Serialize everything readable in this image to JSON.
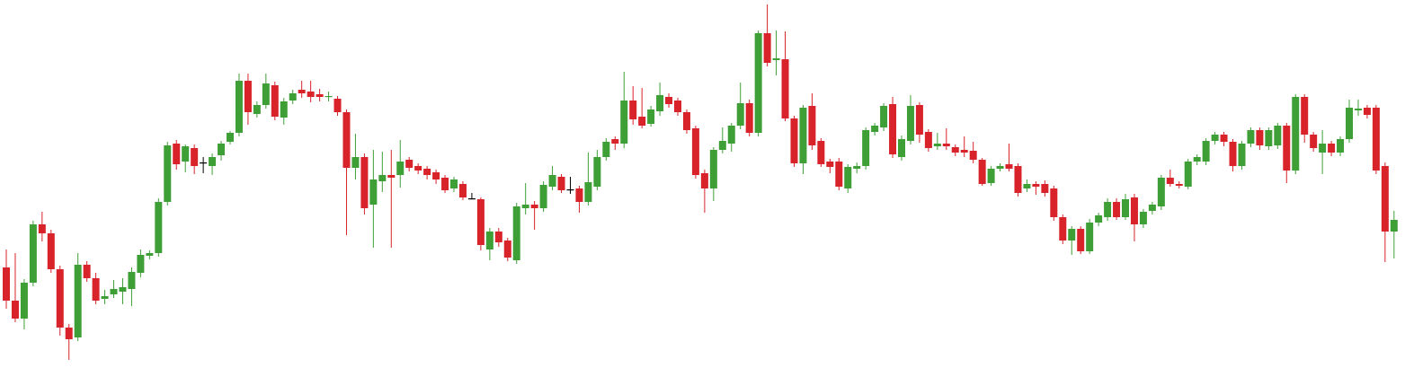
{
  "chart_data": {
    "type": "candlestick",
    "up_color": "#3f9f37",
    "down_color": "#d8232a",
    "flat_color": "#000000",
    "ylim": [
      0,
      429
    ],
    "open": [
      131,
      94,
      74,
      114,
      179,
      169,
      129,
      64,
      53,
      134,
      119,
      96,
      101,
      104,
      107,
      125,
      144,
      147,
      204,
      269,
      249,
      264,
      248,
      244,
      256,
      271,
      281,
      339,
      302,
      312,
      334,
      298,
      317,
      329,
      327,
      324,
      321,
      319,
      304,
      242,
      254,
      201,
      227,
      234,
      234,
      251,
      244,
      241,
      237,
      231,
      219,
      224,
      208,
      207,
      151,
      171,
      161,
      139,
      197,
      201,
      197,
      221,
      232,
      218,
      219,
      204,
      221,
      254,
      274,
      269,
      317,
      299,
      291,
      305,
      321,
      317,
      304,
      286,
      236,
      219,
      262,
      269,
      289,
      314,
      281,
      392,
      362,
      363,
      297,
      247,
      311,
      272,
      249,
      249,
      219,
      241,
      244,
      282,
      287,
      313,
      254,
      272,
      312,
      282,
      266,
      269,
      265,
      262,
      261,
      251,
      225,
      241,
      246,
      244,
      219,
      224,
      224,
      219,
      187,
      161,
      174,
      149,
      181,
      187,
      204,
      187,
      209,
      179,
      194,
      199,
      231,
      224,
      221,
      249,
      249,
      272,
      279,
      271,
      244,
      269,
      284,
      266,
      267,
      289,
      239,
      321,
      279,
      259,
      269,
      259,
      274,
      306,
      309,
      309,
      244,
      171
    ],
    "high": [
      151,
      147,
      118,
      183,
      193,
      173,
      133,
      68,
      147,
      138,
      125,
      106,
      117,
      119,
      131,
      151,
      150,
      208,
      271,
      273,
      268,
      268,
      254,
      258,
      272,
      283,
      347,
      347,
      316,
      347,
      338,
      320,
      329,
      339,
      339,
      330,
      327,
      322,
      307,
      280,
      258,
      262,
      260,
      262,
      273,
      254,
      247,
      244,
      240,
      234,
      232,
      227,
      214,
      209,
      175,
      175,
      164,
      203,
      225,
      205,
      227,
      244,
      235,
      232,
      222,
      259,
      262,
      275,
      277,
      349,
      333,
      331,
      311,
      337,
      325,
      320,
      307,
      289,
      240,
      265,
      287,
      292,
      337,
      318,
      395,
      424,
      395,
      394,
      300,
      312,
      325,
      275,
      252,
      253,
      246,
      248,
      287,
      292,
      314,
      321,
      278,
      323,
      315,
      285,
      281,
      286,
      268,
      277,
      271,
      253,
      244,
      247,
      269,
      247,
      229,
      227,
      228,
      222,
      190,
      177,
      177,
      185,
      192,
      208,
      208,
      213,
      213,
      196,
      204,
      234,
      240,
      227,
      252,
      257,
      275,
      282,
      282,
      274,
      272,
      287,
      287,
      287,
      292,
      292,
      324,
      324,
      282,
      284,
      272,
      277,
      318,
      318,
      312,
      312,
      248,
      194
    ],
    "low": [
      85,
      70,
      62,
      110,
      160,
      125,
      55,
      28,
      49,
      115,
      90,
      90,
      97,
      90,
      88,
      120,
      140,
      143,
      200,
      240,
      237,
      235,
      236,
      234,
      250,
      268,
      277,
      290,
      298,
      308,
      295,
      290,
      313,
      320,
      315,
      316,
      316,
      300,
      167,
      229,
      190,
      153,
      215,
      153,
      220,
      238,
      235,
      229,
      224,
      214,
      215,
      206,
      207,
      150,
      139,
      154,
      138,
      135,
      190,
      173,
      193,
      217,
      214,
      213,
      192,
      200,
      217,
      250,
      262,
      264,
      290,
      286,
      288,
      300,
      309,
      300,
      280,
      230,
      192,
      205,
      258,
      260,
      285,
      277,
      277,
      355,
      345,
      294,
      243,
      235,
      262,
      243,
      236,
      217,
      214,
      236,
      240,
      278,
      283,
      253,
      250,
      268,
      270,
      260,
      262,
      262,
      255,
      254,
      247,
      222,
      222,
      238,
      238,
      210,
      215,
      212,
      210,
      183,
      157,
      145,
      146,
      146,
      177,
      183,
      184,
      184,
      160,
      175,
      190,
      195,
      221,
      219,
      218,
      245,
      245,
      268,
      266,
      238,
      240,
      265,
      262,
      262,
      263,
      225,
      235,
      270,
      260,
      235,
      255,
      255,
      270,
      300,
      297,
      235,
      137,
      141
    ],
    "close": [
      94,
      74,
      114,
      179,
      169,
      129,
      64,
      51,
      134,
      119,
      94,
      99,
      107,
      109,
      126,
      145,
      147,
      204,
      267,
      246,
      266,
      244,
      248,
      254,
      269,
      281,
      339,
      304,
      312,
      336,
      299,
      316,
      325,
      325,
      321,
      321,
      322,
      304,
      242,
      254,
      197,
      229,
      234,
      231,
      249,
      242,
      239,
      234,
      229,
      217,
      229,
      209,
      208,
      156,
      171,
      159,
      142,
      199,
      201,
      197,
      223,
      234,
      217,
      218,
      204,
      226,
      254,
      271,
      269,
      317,
      296,
      289,
      307,
      323,
      313,
      304,
      284,
      234,
      219,
      262,
      272,
      289,
      314,
      281,
      392,
      359,
      364,
      297,
      247,
      309,
      267,
      246,
      243,
      221,
      243,
      244,
      284,
      289,
      311,
      257,
      274,
      311,
      279,
      264,
      269,
      266,
      259,
      259,
      251,
      224,
      241,
      244,
      241,
      214,
      224,
      221,
      214,
      187,
      161,
      174,
      149,
      181,
      189,
      204,
      187,
      207,
      179,
      193,
      201,
      231,
      224,
      222,
      249,
      254,
      272,
      279,
      271,
      244,
      269,
      284,
      267,
      284,
      289,
      239,
      321,
      279,
      264,
      269,
      259,
      274,
      309,
      308,
      301,
      239,
      171,
      184
    ]
  }
}
